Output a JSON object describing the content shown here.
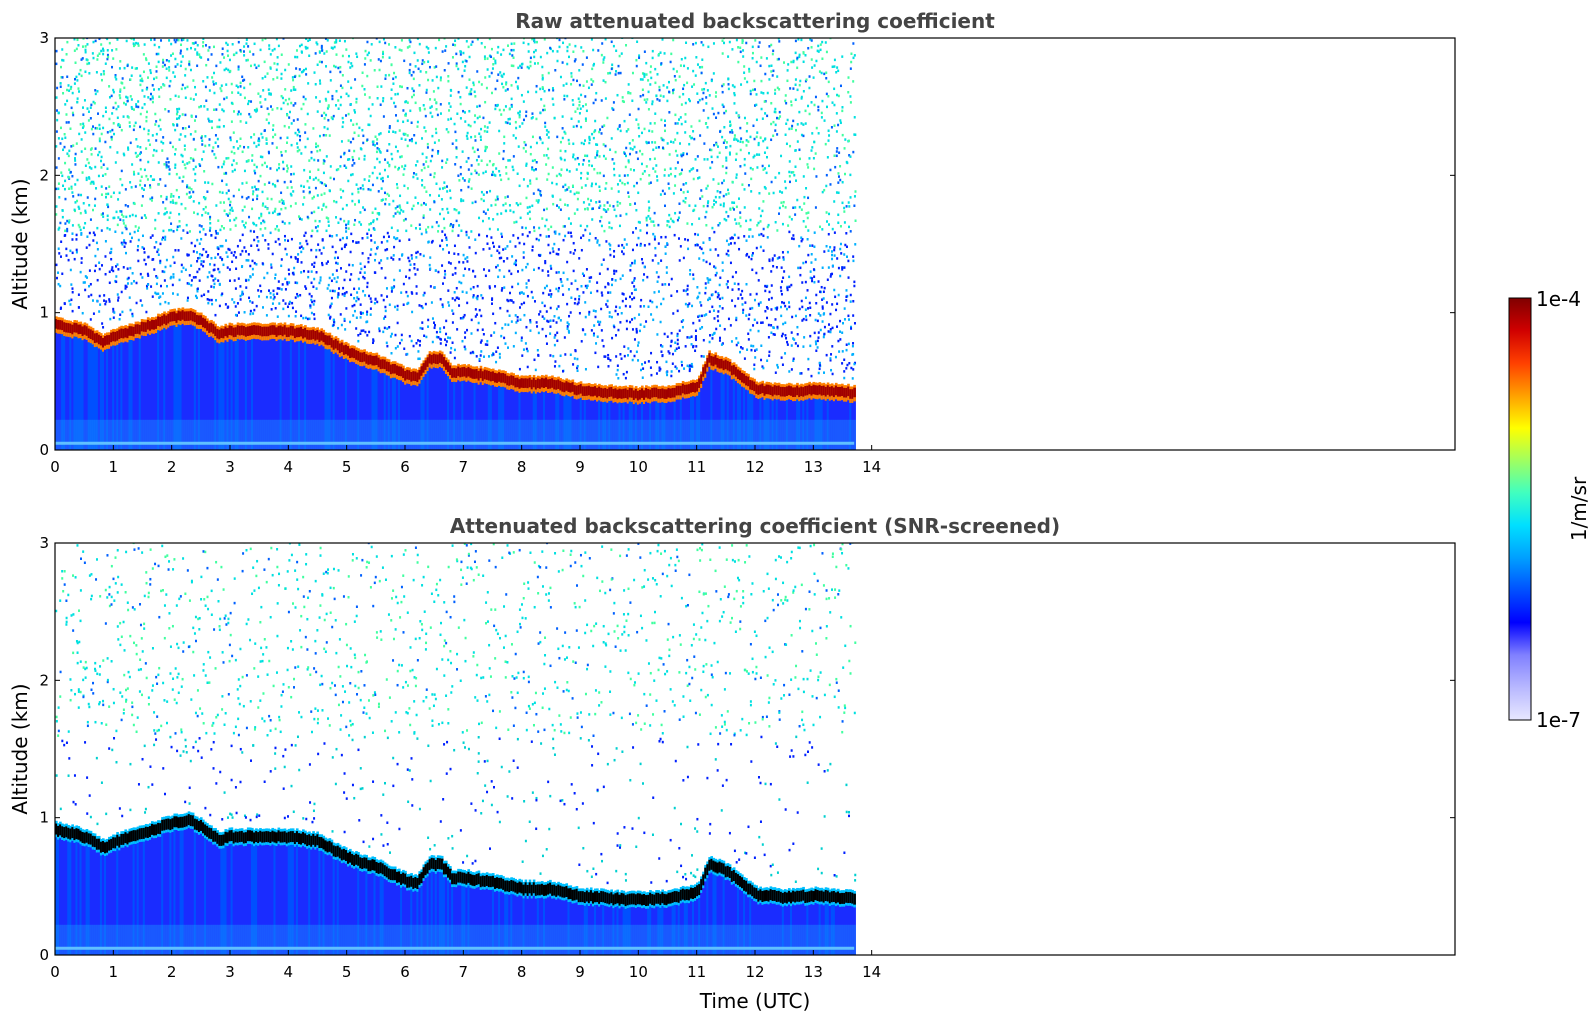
{
  "chart_data": [
    {
      "type": "heatmap",
      "title": "Raw attenuated backscattering coefficient",
      "xlabel": "",
      "ylabel": "Altitude (km)",
      "xlim": [
        0,
        24
      ],
      "ylim": [
        0,
        3
      ],
      "x_ticks": [
        "0",
        "1",
        "2",
        "3",
        "4",
        "5",
        "6",
        "7",
        "8",
        "9",
        "10",
        "11",
        "12",
        "13",
        "14"
      ],
      "y_ticks": [
        "0",
        "1",
        "2",
        "3"
      ],
      "data_time_range": [
        0,
        13.7
      ],
      "layer_top_km": [
        [
          0,
          0.95
        ],
        [
          0.5,
          0.9
        ],
        [
          0.8,
          0.82
        ],
        [
          1,
          0.86
        ],
        [
          1.5,
          0.93
        ],
        [
          2,
          1.0
        ],
        [
          2.3,
          1.02
        ],
        [
          2.5,
          0.97
        ],
        [
          2.8,
          0.88
        ],
        [
          3,
          0.9
        ],
        [
          3.5,
          0.9
        ],
        [
          4,
          0.9
        ],
        [
          4.5,
          0.87
        ],
        [
          5,
          0.75
        ],
        [
          5.5,
          0.68
        ],
        [
          6,
          0.58
        ],
        [
          6.2,
          0.56
        ],
        [
          6.4,
          0.7
        ],
        [
          6.6,
          0.7
        ],
        [
          6.8,
          0.6
        ],
        [
          7,
          0.6
        ],
        [
          7.5,
          0.57
        ],
        [
          8,
          0.52
        ],
        [
          8.5,
          0.52
        ],
        [
          9,
          0.47
        ],
        [
          9.5,
          0.45
        ],
        [
          10,
          0.44
        ],
        [
          10.5,
          0.45
        ],
        [
          11,
          0.5
        ],
        [
          11.2,
          0.7
        ],
        [
          11.5,
          0.65
        ],
        [
          11.8,
          0.55
        ],
        [
          12,
          0.48
        ],
        [
          12.5,
          0.46
        ],
        [
          13,
          0.47
        ],
        [
          13.7,
          0.45
        ]
      ],
      "colormap": "jet",
      "colorbar": {
        "label": "1/m/sr",
        "max_label": "1e-4",
        "min_label": "1e-7",
        "scale": "log"
      }
    },
    {
      "type": "heatmap",
      "title": "Attenuated backscattering coefficient (SNR-screened)",
      "xlabel": "Time (UTC)",
      "ylabel": "Altitude (km)",
      "xlim": [
        0,
        24
      ],
      "ylim": [
        0,
        3
      ],
      "x_ticks": [
        "0",
        "1",
        "2",
        "3",
        "4",
        "5",
        "6",
        "7",
        "8",
        "9",
        "10",
        "11",
        "12",
        "13",
        "14"
      ],
      "y_ticks": [
        "0",
        "1",
        "2",
        "3"
      ],
      "data_time_range": [
        0,
        13.7
      ],
      "layer_top_km": [
        [
          0,
          0.95
        ],
        [
          0.5,
          0.9
        ],
        [
          0.8,
          0.82
        ],
        [
          1,
          0.86
        ],
        [
          1.5,
          0.93
        ],
        [
          2,
          1.0
        ],
        [
          2.3,
          1.02
        ],
        [
          2.5,
          0.97
        ],
        [
          2.8,
          0.88
        ],
        [
          3,
          0.9
        ],
        [
          3.5,
          0.9
        ],
        [
          4,
          0.9
        ],
        [
          4.5,
          0.87
        ],
        [
          5,
          0.75
        ],
        [
          5.5,
          0.68
        ],
        [
          6,
          0.58
        ],
        [
          6.2,
          0.56
        ],
        [
          6.4,
          0.7
        ],
        [
          6.6,
          0.7
        ],
        [
          6.8,
          0.6
        ],
        [
          7,
          0.6
        ],
        [
          7.5,
          0.57
        ],
        [
          8,
          0.52
        ],
        [
          8.5,
          0.52
        ],
        [
          9,
          0.47
        ],
        [
          9.5,
          0.45
        ],
        [
          10,
          0.44
        ],
        [
          10.5,
          0.45
        ],
        [
          11,
          0.5
        ],
        [
          11.2,
          0.7
        ],
        [
          11.5,
          0.65
        ],
        [
          11.8,
          0.55
        ],
        [
          12,
          0.48
        ],
        [
          12.5,
          0.46
        ],
        [
          13,
          0.47
        ],
        [
          13.7,
          0.45
        ]
      ],
      "colormap": "jet",
      "colorbar": {
        "label": "1/m/sr",
        "max_label": "1e-4",
        "min_label": "1e-7",
        "scale": "log"
      }
    }
  ],
  "colorbar": {
    "label": "1/m/sr",
    "max_label": "1e-4",
    "min_label": "1e-7",
    "colors": [
      "#e8e8ff",
      "#b8b8ff",
      "#8080ff",
      "#0000ff",
      "#0050ff",
      "#00a0ff",
      "#00e0ff",
      "#40ffc0",
      "#a0ff60",
      "#ffff00",
      "#ffa000",
      "#ff4000",
      "#d00000",
      "#800000"
    ]
  }
}
